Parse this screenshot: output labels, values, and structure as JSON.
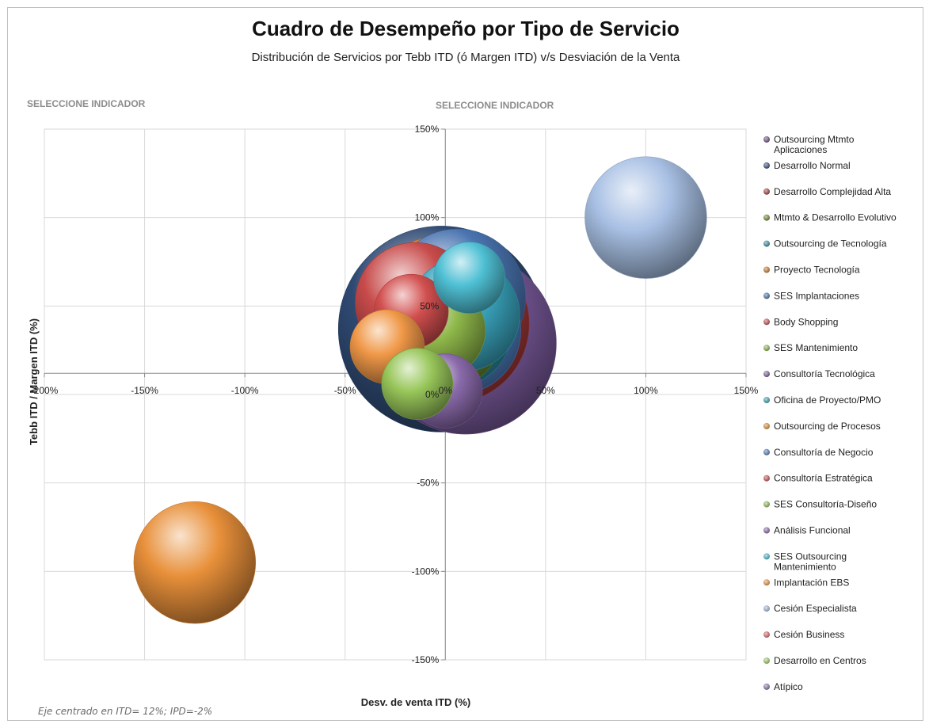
{
  "chart_data": {
    "type": "bubble",
    "title": "Cuadro de Desempeño por Tipo de Servicio",
    "subtitle": "Distribución de Servicios por Tebb ITD (ó Margen ITD)  v/s  Desviación de la Venta",
    "selector_left": "SELECCIONE INDICADOR",
    "selector_center": "SELECCIONE INDICADOR",
    "xlabel": "Desv. de venta ITD (%)",
    "ylabel": "Tebb ITD / Margen ITD (%)",
    "xlim": [
      -2.0,
      1.5
    ],
    "ylim": [
      -1.5,
      1.5
    ],
    "x_ticks": [
      {
        "value": -2.0,
        "label": "-200%"
      },
      {
        "value": -1.5,
        "label": "-150%"
      },
      {
        "value": -1.0,
        "label": "-100%"
      },
      {
        "value": -0.5,
        "label": "-50%"
      },
      {
        "value": 0.0,
        "label": "0%"
      },
      {
        "value": 0.5,
        "label": "50%"
      },
      {
        "value": 1.0,
        "label": "100%"
      },
      {
        "value": 1.5,
        "label": "150%"
      }
    ],
    "y_ticks": [
      {
        "value": 1.5,
        "label": "150%"
      },
      {
        "value": 1.0,
        "label": "100%"
      },
      {
        "value": 0.5,
        "label": "50%"
      },
      {
        "value": 0.0,
        "label": "0%"
      },
      {
        "value": -0.5,
        "label": "-50%"
      },
      {
        "value": -1.0,
        "label": "-100%"
      },
      {
        "value": -1.5,
        "label": "-150%"
      }
    ],
    "axes_cross": {
      "x": 0,
      "y": 0.12
    },
    "grid": true,
    "legend_position": "right",
    "note": "Eje centrado en ITD= 12%; IPD=-2%",
    "series": [
      {
        "name": "Outsourcing Mtmto\nAplicaciones",
        "color": "#6b4c86",
        "x": null,
        "y": null,
        "size": null
      },
      {
        "name": "Desarrollo Normal",
        "color": "#2f4a73",
        "x": -0.02,
        "y": 0.37,
        "size": 1.0
      },
      {
        "name": "Desarrollo Complejidad Alta",
        "color": "#a63a3a",
        "x": 0.02,
        "y": 0.4,
        "size": 0.6
      },
      {
        "name": "Mtmto & Desarrollo Evolutivo",
        "color": "#6c8a2f",
        "x": 0.0,
        "y": 0.35,
        "size": 0.3
      },
      {
        "name": "Outsourcing de Tecnología",
        "color": "#2f8fa3",
        "x": 0.03,
        "y": 0.38,
        "size": 0.35
      },
      {
        "name": "Proyecto Tecnología",
        "color": "#d07a2a",
        "x": -0.01,
        "y": 0.44,
        "size": 0.62
      },
      {
        "name": "SES Implantaciones",
        "color": "#4a74b0",
        "x": 0.06,
        "y": 0.55,
        "size": 0.44
      },
      {
        "name": "Body Shopping",
        "color": "#c84b4b",
        "x": -0.15,
        "y": 0.52,
        "size": 0.34
      },
      {
        "name": "SES Mantenimiento",
        "color": "#8fb84a",
        "x": -0.03,
        "y": 0.36,
        "size": 0.2
      },
      {
        "name": "Consultoría Tecnológica",
        "color": "#7a5a9c",
        "x": 0.1,
        "y": 0.29,
        "size": 0.78
      },
      {
        "name": "Oficina de Proyecto/PMO",
        "color": "#3aa6bf",
        "x": 0.09,
        "y": 0.45,
        "size": 0.3
      },
      {
        "name": "Outsourcing de Procesos",
        "color": "#e8903a",
        "x": -1.25,
        "y": -0.95,
        "size": 0.35
      },
      {
        "name": "Consultoría de Negocio",
        "color": "#4f7fc1",
        "x": 0.06,
        "y": 0.36,
        "size": 0.38
      },
      {
        "name": "Consultoría Estratégica",
        "color": "#d24f4f",
        "x": -0.17,
        "y": 0.47,
        "size": 0.13
      },
      {
        "name": "SES Consultoría-Diseño",
        "color": "#98c65a",
        "x": -0.14,
        "y": 0.06,
        "size": 0.12
      },
      {
        "name": "Análisis Funcional",
        "color": "#8a6aaa",
        "x": 0.0,
        "y": 0.02,
        "size": 0.13
      },
      {
        "name": "SES Outsourcing\nMantenimiento",
        "color": "#4fc0d4",
        "x": 0.12,
        "y": 0.66,
        "size": 0.12
      },
      {
        "name": "Implantación EBS",
        "color": "#f09848",
        "x": -0.29,
        "y": 0.27,
        "size": 0.13
      },
      {
        "name": "Cesión Especialista",
        "color": "#a8c0e4",
        "x": 1.0,
        "y": 1.0,
        "size": 0.35
      },
      {
        "name": "Cesión Business",
        "color": "#e06a6a",
        "x": null,
        "y": null,
        "size": null
      },
      {
        "name": "Desarrollo en Centros",
        "color": "#a4d46a",
        "x": null,
        "y": null,
        "size": null
      },
      {
        "name": "Atípico",
        "color": "#8c72b4",
        "x": null,
        "y": null,
        "size": null
      }
    ]
  }
}
